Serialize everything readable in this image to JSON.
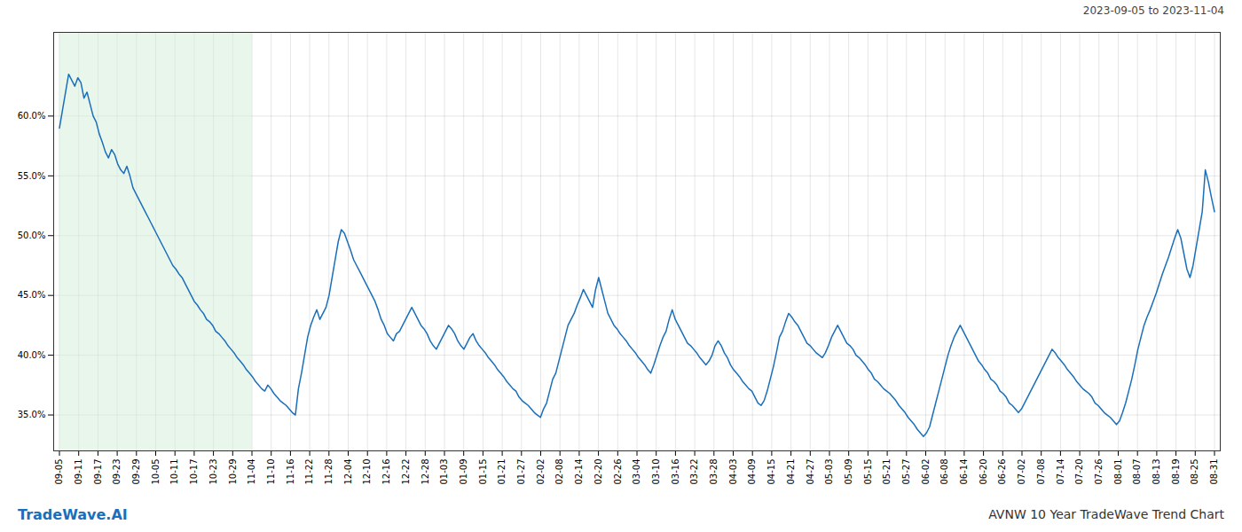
{
  "chart_data": {
    "type": "line",
    "title": "AVNW 10 Year TradeWave Trend Chart",
    "subtitle": "2023-09-05 to 2023-11-04",
    "annotations": [
      "TradeWave.AI"
    ],
    "color": "#1a6fba",
    "grid": true,
    "ylim": [
      32.0,
      67.0
    ],
    "yticks": [
      {
        "value": 35.0,
        "label": "35.0%"
      },
      {
        "value": 40.0,
        "label": "40.0%"
      },
      {
        "value": 45.0,
        "label": "45.0%"
      },
      {
        "value": 50.0,
        "label": "50.0%"
      },
      {
        "value": 55.0,
        "label": "55.0%"
      },
      {
        "value": 60.0,
        "label": "60.0%"
      }
    ],
    "xlim": [
      -0.3,
      60.3
    ],
    "xticks": [
      {
        "value": 0,
        "label": "09-05"
      },
      {
        "value": 1,
        "label": "09-11"
      },
      {
        "value": 2,
        "label": "09-17"
      },
      {
        "value": 3,
        "label": "09-23"
      },
      {
        "value": 4,
        "label": "09-29"
      },
      {
        "value": 5,
        "label": "10-05"
      },
      {
        "value": 6,
        "label": "10-11"
      },
      {
        "value": 7,
        "label": "10-17"
      },
      {
        "value": 8,
        "label": "10-23"
      },
      {
        "value": 9,
        "label": "10-29"
      },
      {
        "value": 10,
        "label": "11-04"
      },
      {
        "value": 11,
        "label": "11-10"
      },
      {
        "value": 12,
        "label": "11-16"
      },
      {
        "value": 13,
        "label": "11-22"
      },
      {
        "value": 14,
        "label": "11-28"
      },
      {
        "value": 15,
        "label": "12-04"
      },
      {
        "value": 16,
        "label": "12-10"
      },
      {
        "value": 17,
        "label": "12-16"
      },
      {
        "value": 18,
        "label": "12-22"
      },
      {
        "value": 19,
        "label": "12-28"
      },
      {
        "value": 20,
        "label": "01-03"
      },
      {
        "value": 21,
        "label": "01-09"
      },
      {
        "value": 22,
        "label": "01-15"
      },
      {
        "value": 23,
        "label": "01-21"
      },
      {
        "value": 24,
        "label": "01-27"
      },
      {
        "value": 25,
        "label": "02-02"
      },
      {
        "value": 26,
        "label": "02-08"
      },
      {
        "value": 27,
        "label": "02-14"
      },
      {
        "value": 28,
        "label": "02-20"
      },
      {
        "value": 29,
        "label": "02-26"
      },
      {
        "value": 30,
        "label": "03-04"
      },
      {
        "value": 31,
        "label": "03-10"
      },
      {
        "value": 32,
        "label": "03-16"
      },
      {
        "value": 33,
        "label": "03-22"
      },
      {
        "value": 34,
        "label": "03-28"
      },
      {
        "value": 35,
        "label": "04-03"
      },
      {
        "value": 36,
        "label": "04-09"
      },
      {
        "value": 37,
        "label": "04-15"
      },
      {
        "value": 38,
        "label": "04-21"
      },
      {
        "value": 39,
        "label": "04-27"
      },
      {
        "value": 40,
        "label": "05-03"
      },
      {
        "value": 41,
        "label": "05-09"
      },
      {
        "value": 42,
        "label": "05-15"
      },
      {
        "value": 43,
        "label": "05-21"
      },
      {
        "value": 44,
        "label": "05-27"
      },
      {
        "value": 45,
        "label": "06-02"
      },
      {
        "value": 46,
        "label": "06-08"
      },
      {
        "value": 47,
        "label": "06-14"
      },
      {
        "value": 48,
        "label": "06-20"
      },
      {
        "value": 49,
        "label": "06-26"
      },
      {
        "value": 50,
        "label": "07-02"
      },
      {
        "value": 51,
        "label": "07-08"
      },
      {
        "value": 52,
        "label": "07-14"
      },
      {
        "value": 53,
        "label": "07-20"
      },
      {
        "value": 54,
        "label": "07-26"
      },
      {
        "value": 55,
        "label": "08-01"
      },
      {
        "value": 56,
        "label": "08-07"
      },
      {
        "value": 57,
        "label": "08-13"
      },
      {
        "value": 58,
        "label": "08-19"
      },
      {
        "value": 59,
        "label": "08-25"
      },
      {
        "value": 60,
        "label": "08-31"
      }
    ],
    "shade": {
      "x": [
        0,
        10
      ],
      "color": "#d4edda"
    },
    "values": [
      59.0,
      60.5,
      62.0,
      63.5,
      63.0,
      62.5,
      63.2,
      62.8,
      61.5,
      62.0,
      61.0,
      60.0,
      59.5,
      58.5,
      57.8,
      57.0,
      56.5,
      57.2,
      56.8,
      56.0,
      55.5,
      55.2,
      55.8,
      55.0,
      54.0,
      53.5,
      53.0,
      52.5,
      52.0,
      51.5,
      51.0,
      50.5,
      50.0,
      49.5,
      49.0,
      48.5,
      48.0,
      47.5,
      47.2,
      46.8,
      46.5,
      46.0,
      45.5,
      45.0,
      44.5,
      44.2,
      43.8,
      43.5,
      43.0,
      42.8,
      42.5,
      42.0,
      41.8,
      41.5,
      41.2,
      40.8,
      40.5,
      40.2,
      39.8,
      39.5,
      39.2,
      38.8,
      38.5,
      38.2,
      37.8,
      37.5,
      37.2,
      37.0,
      37.5,
      37.2,
      36.8,
      36.5,
      36.2,
      36.0,
      35.8,
      35.5,
      35.2,
      35.0,
      37.2,
      38.5,
      40.0,
      41.5,
      42.5,
      43.2,
      43.8,
      43.0,
      43.5,
      44.0,
      45.0,
      46.5,
      48.0,
      49.5,
      50.5,
      50.2,
      49.5,
      48.8,
      48.0,
      47.5,
      47.0,
      46.5,
      46.0,
      45.5,
      45.0,
      44.5,
      43.8,
      43.0,
      42.5,
      41.8,
      41.5,
      41.2,
      41.8,
      42.0,
      42.5,
      43.0,
      43.5,
      44.0,
      43.5,
      43.0,
      42.5,
      42.2,
      41.8,
      41.2,
      40.8,
      40.5,
      41.0,
      41.5,
      42.0,
      42.5,
      42.2,
      41.8,
      41.2,
      40.8,
      40.5,
      41.0,
      41.5,
      41.8,
      41.2,
      40.8,
      40.5,
      40.2,
      39.8,
      39.5,
      39.2,
      38.8,
      38.5,
      38.2,
      37.8,
      37.5,
      37.2,
      37.0,
      36.5,
      36.2,
      36.0,
      35.8,
      35.5,
      35.2,
      35.0,
      34.8,
      35.5,
      36.0,
      37.0,
      38.0,
      38.5,
      39.5,
      40.5,
      41.5,
      42.5,
      43.0,
      43.5,
      44.2,
      44.8,
      45.5,
      45.0,
      44.5,
      44.0,
      45.5,
      46.5,
      45.5,
      44.5,
      43.5,
      43.0,
      42.5,
      42.2,
      41.8,
      41.5,
      41.2,
      40.8,
      40.5,
      40.2,
      39.8,
      39.5,
      39.2,
      38.8,
      38.5,
      39.2,
      40.0,
      40.8,
      41.5,
      42.0,
      43.0,
      43.8,
      43.0,
      42.5,
      42.0,
      41.5,
      41.0,
      40.8,
      40.5,
      40.2,
      39.8,
      39.5,
      39.2,
      39.5,
      40.0,
      40.8,
      41.2,
      40.8,
      40.2,
      39.8,
      39.2,
      38.8,
      38.5,
      38.2,
      37.8,
      37.5,
      37.2,
      37.0,
      36.5,
      36.0,
      35.8,
      36.2,
      37.0,
      38.0,
      39.0,
      40.2,
      41.5,
      42.0,
      42.8,
      43.5,
      43.2,
      42.8,
      42.5,
      42.0,
      41.5,
      41.0,
      40.8,
      40.5,
      40.2,
      40.0,
      39.8,
      40.2,
      40.8,
      41.5,
      42.0,
      42.5,
      42.0,
      41.5,
      41.0,
      40.8,
      40.5,
      40.0,
      39.8,
      39.5,
      39.2,
      38.8,
      38.5,
      38.0,
      37.8,
      37.5,
      37.2,
      37.0,
      36.8,
      36.5,
      36.2,
      35.8,
      35.5,
      35.2,
      34.8,
      34.5,
      34.2,
      33.8,
      33.5,
      33.2,
      33.5,
      34.0,
      35.0,
      36.0,
      37.0,
      38.0,
      39.0,
      40.0,
      40.8,
      41.5,
      42.0,
      42.5,
      42.0,
      41.5,
      41.0,
      40.5,
      40.0,
      39.5,
      39.2,
      38.8,
      38.5,
      38.0,
      37.8,
      37.5,
      37.0,
      36.8,
      36.5,
      36.0,
      35.8,
      35.5,
      35.2,
      35.5,
      36.0,
      36.5,
      37.0,
      37.5,
      38.0,
      38.5,
      39.0,
      39.5,
      40.0,
      40.5,
      40.2,
      39.8,
      39.5,
      39.2,
      38.8,
      38.5,
      38.2,
      37.8,
      37.5,
      37.2,
      37.0,
      36.8,
      36.5,
      36.0,
      35.8,
      35.5,
      35.2,
      35.0,
      34.8,
      34.5,
      34.2,
      34.5,
      35.2,
      36.0,
      37.0,
      38.0,
      39.2,
      40.5,
      41.5,
      42.5,
      43.2,
      43.8,
      44.5,
      45.2,
      46.0,
      46.8,
      47.5,
      48.2,
      49.0,
      49.8,
      50.5,
      49.8,
      48.5,
      47.2,
      46.5,
      47.5,
      49.0,
      50.5,
      52.0,
      55.5,
      54.5,
      53.2,
      52.0
    ]
  }
}
